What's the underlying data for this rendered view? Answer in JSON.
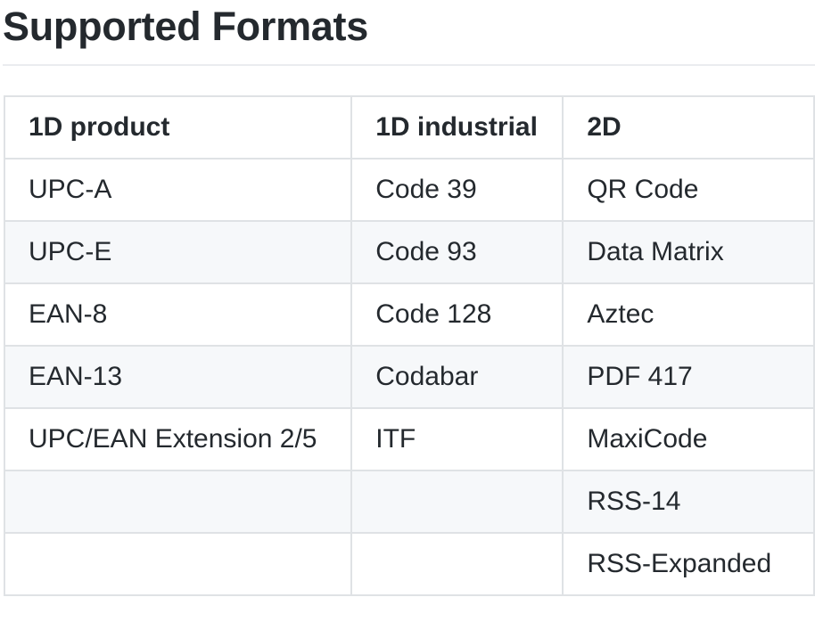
{
  "page": {
    "title": "Supported Formats"
  },
  "table": {
    "headers": [
      "1D product",
      "1D industrial",
      "2D"
    ],
    "rows": [
      [
        "UPC-A",
        "Code 39",
        "QR Code"
      ],
      [
        "UPC-E",
        "Code 93",
        "Data Matrix"
      ],
      [
        "EAN-8",
        "Code 128",
        "Aztec"
      ],
      [
        "EAN-13",
        "Codabar",
        "PDF 417"
      ],
      [
        "UPC/EAN Extension 2/5",
        "ITF",
        "MaxiCode"
      ],
      [
        "",
        "",
        "RSS-14"
      ],
      [
        "",
        "",
        "RSS-Expanded"
      ]
    ]
  },
  "colors": {
    "text": "#24292e",
    "border": "#dfe2e5",
    "stripe": "#f6f8fa",
    "rule": "#eaecef"
  }
}
